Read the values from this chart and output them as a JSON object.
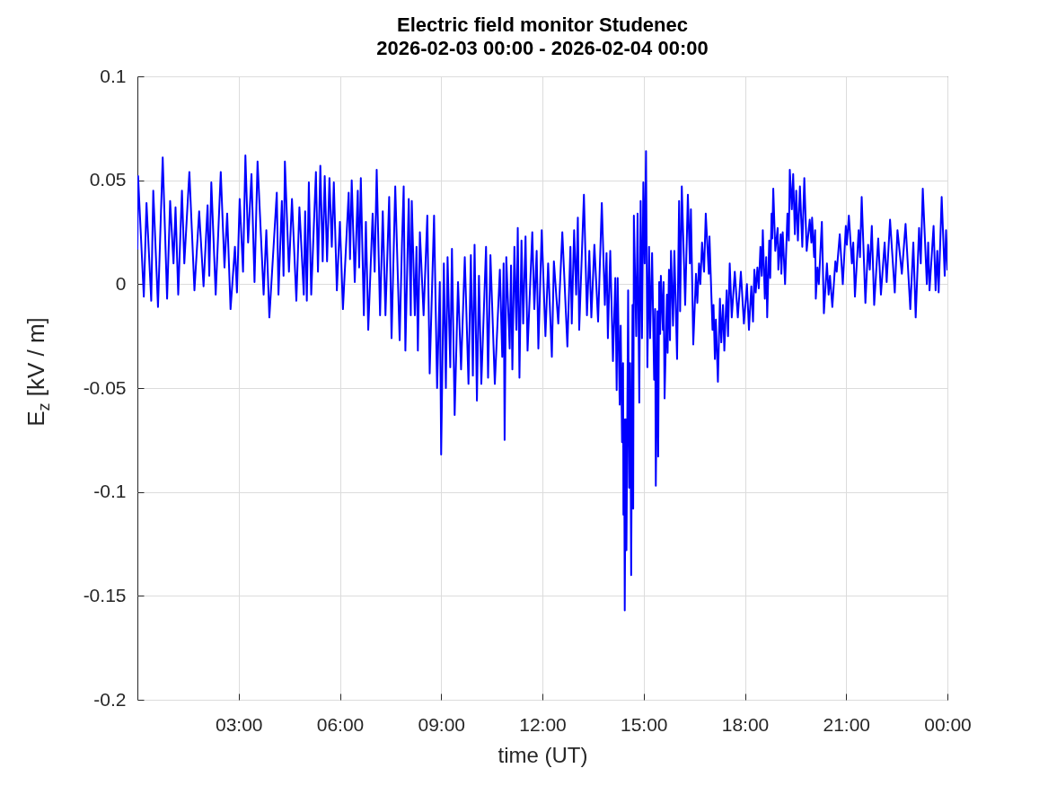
{
  "chart_data": {
    "type": "line",
    "title": "Electric field monitor Studenec",
    "subtitle": "2026-02-03 00:00 - 2026-02-04 00:00",
    "xlabel": "time (UT)",
    "ylabel": "E$_{z}$ [kV / m]",
    "color": "#0000ff",
    "x": [
      0,
      0.02,
      0.19,
      0.27,
      0.41,
      0.47,
      0.61,
      0.75,
      0.88,
      0.97,
      1.07,
      1.13,
      1.21,
      1.32,
      1.39,
      1.54,
      1.69,
      1.83,
      1.96,
      2.08,
      2.13,
      2.19,
      2.32,
      2.47,
      2.58,
      2.66,
      2.76,
      2.89,
      2.95,
      3.03,
      3.13,
      3.2,
      3.28,
      3.38,
      3.47,
      3.56,
      3.74,
      3.82,
      3.91,
      4.13,
      4.18,
      4.28,
      4.33,
      4.37,
      4.49,
      4.58,
      4.71,
      4.8,
      4.93,
      4.97,
      5.02,
      5.08,
      5.15,
      5.29,
      5.35,
      5.42,
      5.49,
      5.55,
      5.62,
      5.69,
      5.76,
      5.82,
      5.91,
      6.0,
      6.09,
      6.26,
      6.3,
      6.35,
      6.44,
      6.53,
      6.57,
      6.62,
      6.71,
      6.77,
      6.84,
      6.97,
      7.03,
      7.09,
      7.19,
      7.27,
      7.35,
      7.46,
      7.53,
      7.64,
      7.77,
      7.84,
      7.89,
      7.94,
      8.04,
      8.1,
      8.13,
      8.22,
      8.27,
      8.31,
      8.37,
      8.48,
      8.59,
      8.66,
      8.79,
      8.88,
      8.96,
      9.0,
      9.08,
      9.14,
      9.19,
      9.27,
      9.32,
      9.4,
      9.5,
      9.59,
      9.7,
      9.81,
      9.88,
      9.94,
      9.99,
      10.06,
      10.12,
      10.19,
      10.33,
      10.39,
      10.46,
      10.59,
      10.74,
      10.81,
      10.85,
      10.88,
      10.93,
      11.03,
      11.07,
      11.11,
      11.17,
      11.23,
      11.27,
      11.32,
      11.38,
      11.43,
      11.5,
      11.56,
      11.7,
      11.76,
      11.83,
      11.88,
      11.98,
      12.09,
      12.17,
      12.28,
      12.34,
      12.47,
      12.59,
      12.74,
      12.83,
      12.87,
      12.94,
      13.0,
      13.05,
      13.09,
      13.23,
      13.32,
      13.39,
      13.45,
      13.54,
      13.65,
      13.76,
      13.85,
      13.9,
      13.94,
      14.01,
      14.09,
      14.16,
      14.2,
      14.23,
      14.29,
      14.32,
      14.36,
      14.39,
      14.4,
      14.42,
      14.44,
      14.47,
      14.49,
      14.54,
      14.57,
      14.6,
      14.63,
      14.67,
      14.69,
      14.71,
      14.78,
      14.82,
      14.87,
      14.91,
      14.95,
      14.99,
      15.03,
      15.07,
      15.11,
      15.16,
      15.19,
      15.25,
      15.31,
      15.34,
      15.36,
      15.41,
      15.43,
      15.46,
      15.49,
      15.51,
      15.57,
      15.59,
      15.62,
      15.69,
      15.71,
      15.75,
      15.78,
      15.81,
      15.87,
      15.91,
      15.99,
      16.05,
      16.08,
      16.13,
      16.23,
      16.31,
      16.37,
      16.4,
      16.47,
      16.55,
      16.59,
      16.64,
      16.68,
      16.73,
      16.79,
      16.84,
      16.93,
      16.95,
      17.04,
      17.07,
      17.11,
      17.14,
      17.2,
      17.26,
      17.3,
      17.35,
      17.39,
      17.46,
      17.5,
      17.55,
      17.61,
      17.7,
      17.79,
      17.88,
      17.97,
      18.06,
      18.12,
      18.19,
      18.24,
      18.28,
      18.32,
      18.37,
      18.41,
      18.46,
      18.5,
      18.53,
      18.59,
      18.63,
      18.66,
      18.72,
      18.75,
      18.79,
      18.81,
      18.84,
      18.9,
      18.97,
      18.99,
      19.06,
      19.08,
      19.12,
      19.19,
      19.26,
      19.3,
      19.33,
      19.39,
      19.43,
      19.48,
      19.52,
      19.57,
      19.63,
      19.7,
      19.76,
      19.83,
      19.92,
      19.97,
      19.99,
      20.05,
      20.08,
      20.1,
      20.15,
      20.19,
      20.28,
      20.34,
      20.43,
      20.48,
      20.52,
      20.59,
      20.68,
      20.72,
      20.81,
      20.9,
      20.99,
      21.02,
      21.08,
      21.17,
      21.21,
      21.26,
      21.37,
      21.41,
      21.46,
      21.57,
      21.65,
      21.7,
      21.76,
      21.83,
      21.95,
      22.03,
      22.14,
      22.2,
      22.3,
      22.44,
      22.52,
      22.65,
      22.76,
      22.9,
      22.99,
      23.06,
      23.16,
      23.21,
      23.27,
      23.39,
      23.43,
      23.47,
      23.59,
      23.65,
      23.7,
      23.74,
      23.83,
      23.92,
      23.96,
      24.0
    ],
    "values": [
      0.017,
      0.052,
      -0.006,
      0.039,
      -0.008,
      0.045,
      -0.011,
      0.061,
      -0.007,
      0.04,
      0.01,
      0.037,
      -0.005,
      0.045,
      0.01,
      0.054,
      -0.003,
      0.035,
      -0.001,
      0.038,
      0.004,
      0.049,
      -0.005,
      0.054,
      0.008,
      0.034,
      -0.012,
      0.018,
      -0.004,
      0.041,
      0.006,
      0.062,
      0.02,
      0.053,
      0.001,
      0.059,
      -0.005,
      0.026,
      -0.016,
      0.044,
      -0.005,
      0.04,
      0.004,
      0.059,
      0.006,
      0.041,
      -0.008,
      0.037,
      -0.005,
      0.035,
      -0.008,
      0.049,
      -0.005,
      0.054,
      0.006,
      0.057,
      0.011,
      0.052,
      0.011,
      0.051,
      0.018,
      0.049,
      -0.003,
      0.03,
      -0.012,
      0.044,
      0.012,
      0.05,
      0.001,
      0.045,
      0.008,
      0.051,
      -0.015,
      0.03,
      -0.022,
      0.034,
      0.006,
      0.055,
      -0.015,
      0.035,
      -0.015,
      0.042,
      -0.026,
      0.047,
      -0.027,
      0.02,
      0.047,
      -0.032,
      0.041,
      -0.015,
      0.04,
      -0.015,
      0.018,
      -0.032,
      0.025,
      -0.015,
      0.033,
      -0.043,
      0.033,
      -0.05,
      0.001,
      -0.082,
      0.01,
      -0.05,
      0.013,
      -0.04,
      0.017,
      -0.063,
      0.001,
      -0.041,
      0.013,
      -0.048,
      0.014,
      -0.044,
      0.019,
      -0.056,
      0.004,
      -0.048,
      0.018,
      -0.045,
      0.014,
      -0.048,
      0.007,
      -0.035,
      0.01,
      -0.075,
      0.013,
      -0.031,
      0.009,
      -0.041,
      0.018,
      -0.022,
      0.027,
      -0.045,
      0.021,
      -0.019,
      0.023,
      -0.032,
      0.025,
      -0.012,
      0.016,
      -0.031,
      0.026,
      -0.025,
      0.01,
      -0.035,
      0.011,
      -0.019,
      0.025,
      -0.03,
      0.018,
      -0.019,
      0.026,
      -0.005,
      0.032,
      -0.022,
      0.043,
      -0.015,
      0.016,
      -0.016,
      0.019,
      -0.018,
      0.039,
      -0.01,
      0.015,
      -0.026,
      0.016,
      -0.037,
      0.003,
      -0.051,
      0.003,
      -0.058,
      -0.02,
      -0.076,
      -0.038,
      -0.111,
      -0.065,
      -0.157,
      -0.065,
      -0.128,
      -0.003,
      -0.098,
      -0.038,
      -0.14,
      -0.01,
      -0.108,
      0.033,
      -0.025,
      0.034,
      -0.057,
      0.04,
      -0.026,
      0.049,
      0.01,
      0.064,
      -0.04,
      0.018,
      -0.026,
      0.015,
      -0.046,
      -0.012,
      -0.097,
      -0.013,
      -0.083,
      0.001,
      -0.024,
      0.004,
      -0.022,
      0.001,
      -0.055,
      -0.005,
      -0.033,
      0.007,
      -0.027,
      0.016,
      -0.02,
      0.016,
      -0.036,
      0.04,
      -0.013,
      0.047,
      -0.01,
      0.043,
      0.01,
      0.036,
      -0.029,
      0.005,
      -0.009,
      0.01,
      0.0,
      0.02,
      0.006,
      0.034,
      0.005,
      0.023,
      -0.022,
      -0.01,
      -0.036,
      -0.017,
      -0.047,
      -0.007,
      -0.028,
      -0.01,
      -0.032,
      -0.003,
      -0.025,
      0.01,
      -0.016,
      0.006,
      -0.016,
      0.006,
      -0.019,
      0.0,
      -0.022,
      -0.001,
      -0.018,
      0.007,
      -0.004,
      0.008,
      -0.002,
      0.018,
      0.004,
      0.026,
      -0.007,
      0.013,
      -0.016,
      0.021,
      0.003,
      0.034,
      0.022,
      0.046,
      0.016,
      0.027,
      0.007,
      0.024,
      0.005,
      0.025,
      0.0,
      0.034,
      0.021,
      0.055,
      0.036,
      0.053,
      0.024,
      0.045,
      0.021,
      0.047,
      0.018,
      0.051,
      0.016,
      0.031,
      0.02,
      0.032,
      0.013,
      0.026,
      -0.007,
      0.008,
      0.0,
      0.03,
      -0.014,
      0.01,
      -0.005,
      0.004,
      -0.011,
      0.011,
      0.006,
      0.024,
      0.0,
      0.028,
      0.019,
      0.033,
      0.01,
      0.02,
      -0.006,
      0.026,
      0.013,
      0.042,
      -0.009,
      0.019,
      0.007,
      0.028,
      -0.01,
      0.022,
      -0.005,
      0.02,
      0.001,
      0.031,
      -0.004,
      0.026,
      0.005,
      0.029,
      -0.012,
      0.02,
      -0.016,
      0.027,
      0.01,
      0.046,
      0.0,
      0.02,
      -0.003,
      0.028,
      -0.003,
      0.016,
      -0.004,
      0.042,
      0.004,
      0.026,
      0.007
    ],
    "xlim": [
      0,
      24
    ],
    "xticks": [
      {
        "value": 3,
        "label": "03:00"
      },
      {
        "value": 6,
        "label": "06:00"
      },
      {
        "value": 9,
        "label": "09:00"
      },
      {
        "value": 12,
        "label": "12:00"
      },
      {
        "value": 15,
        "label": "15:00"
      },
      {
        "value": 18,
        "label": "18:00"
      },
      {
        "value": 21,
        "label": "21:00"
      },
      {
        "value": 24,
        "label": "00:00"
      }
    ],
    "ylim": [
      -0.2,
      0.1
    ],
    "yticks": [
      -0.2,
      -0.15,
      -0.1,
      -0.05,
      0,
      0.05,
      0.1
    ],
    "grid": true
  }
}
